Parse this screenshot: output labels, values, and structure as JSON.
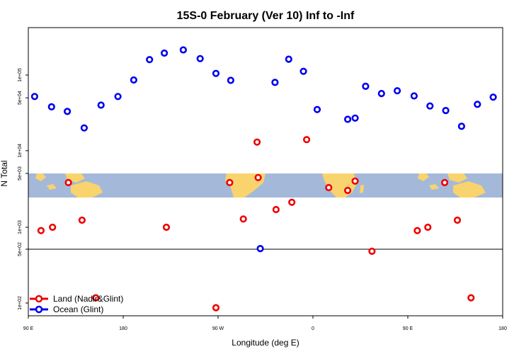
{
  "chart_data": {
    "type": "scatter",
    "title": "15S-0 February (Ver 10)   Inf to -Inf",
    "xlabel": "Longitude (deg E)",
    "ylabel": "N Total",
    "x_ticks": [
      {
        "value": 90,
        "label": "90 E"
      },
      {
        "value": 180,
        "label": "180"
      },
      {
        "value": 270,
        "label": "90 W"
      },
      {
        "value": 360,
        "label": "0"
      },
      {
        "value": 450,
        "label": "90 E"
      },
      {
        "value": 540,
        "label": "180"
      }
    ],
    "xlim": [
      90,
      540
    ],
    "upper_panel": {
      "scale": "log",
      "ylim": [
        5000,
        200000
      ],
      "y_ticks": [
        {
          "value": 5000,
          "label": "5e+03"
        },
        {
          "value": 10000,
          "label": "1e+04"
        },
        {
          "value": 50000,
          "label": "5e+04"
        },
        {
          "value": 100000,
          "label": "1e+05"
        }
      ]
    },
    "middle_panel": {
      "scale": "log",
      "ylim": [
        500,
        5000
      ],
      "y_ticks": [
        {
          "value": 500,
          "label": "5e+02"
        },
        {
          "value": 1000,
          "label": "1e+03"
        },
        {
          "value": 5000,
          "label": "5e+03"
        }
      ]
    },
    "lower_panel": {
      "scale": "log",
      "ylim": [
        80,
        500
      ],
      "y_ticks": [
        {
          "value": 100,
          "label": "1e+02"
        },
        {
          "value": 500,
          "label": "5e+02"
        }
      ]
    },
    "series": [
      {
        "name": "Land (Nadir&Glint)",
        "color": "#ee0000",
        "points": [
          {
            "x": 102,
            "y": 900
          },
          {
            "x": 113,
            "y": 1000
          },
          {
            "x": 128,
            "y": 4100
          },
          {
            "x": 141,
            "y": 1250
          },
          {
            "x": 154,
            "y": 117
          },
          {
            "x": 221,
            "y": 1000
          },
          {
            "x": 268,
            "y": 87
          },
          {
            "x": 281,
            "y": 4100
          },
          {
            "x": 294,
            "y": 1300
          },
          {
            "x": 307,
            "y": 13000
          },
          {
            "x": 308,
            "y": 4800
          },
          {
            "x": 325,
            "y": 1750
          },
          {
            "x": 340,
            "y": 2200
          },
          {
            "x": 354,
            "y": 14000
          },
          {
            "x": 375,
            "y": 3500
          },
          {
            "x": 393,
            "y": 3200
          },
          {
            "x": 400,
            "y": 4300
          },
          {
            "x": 416,
            "y": 470
          },
          {
            "x": 459,
            "y": 900
          },
          {
            "x": 469,
            "y": 1000
          },
          {
            "x": 485,
            "y": 4100
          },
          {
            "x": 497,
            "y": 1250
          },
          {
            "x": 510,
            "y": 117
          }
        ]
      },
      {
        "name": "Ocean (Glint)",
        "color": "#0000ee",
        "points": [
          {
            "x": 96,
            "y": 52000
          },
          {
            "x": 112,
            "y": 38000
          },
          {
            "x": 127,
            "y": 33000
          },
          {
            "x": 143,
            "y": 20000
          },
          {
            "x": 159,
            "y": 40000
          },
          {
            "x": 175,
            "y": 52000
          },
          {
            "x": 190,
            "y": 86000
          },
          {
            "x": 205,
            "y": 160000
          },
          {
            "x": 219,
            "y": 195000
          },
          {
            "x": 237,
            "y": 215000
          },
          {
            "x": 253,
            "y": 165000
          },
          {
            "x": 268,
            "y": 105000
          },
          {
            "x": 282,
            "y": 85000
          },
          {
            "x": 310,
            "y": 510
          },
          {
            "x": 324,
            "y": 80000
          },
          {
            "x": 337,
            "y": 162000
          },
          {
            "x": 351,
            "y": 112000
          },
          {
            "x": 364,
            "y": 35000
          },
          {
            "x": 393,
            "y": 26000
          },
          {
            "x": 400,
            "y": 27000
          },
          {
            "x": 410,
            "y": 71000
          },
          {
            "x": 425,
            "y": 57000
          },
          {
            "x": 440,
            "y": 62000
          },
          {
            "x": 456,
            "y": 53000
          },
          {
            "x": 471,
            "y": 39000
          },
          {
            "x": 486,
            "y": 34000
          },
          {
            "x": 501,
            "y": 21000
          },
          {
            "x": 516,
            "y": 41000
          },
          {
            "x": 531,
            "y": 51000
          }
        ]
      }
    ],
    "legend": {
      "placement": "bottom-left",
      "entries": [
        {
          "label": "Land (Nadir&Glint)",
          "color": "#ee0000"
        },
        {
          "label": "Ocean (Glint)",
          "color": "#0000ee"
        }
      ]
    },
    "map_band": {
      "ocean_color": "#a4b9da",
      "land_color": "#f9d36d"
    }
  }
}
